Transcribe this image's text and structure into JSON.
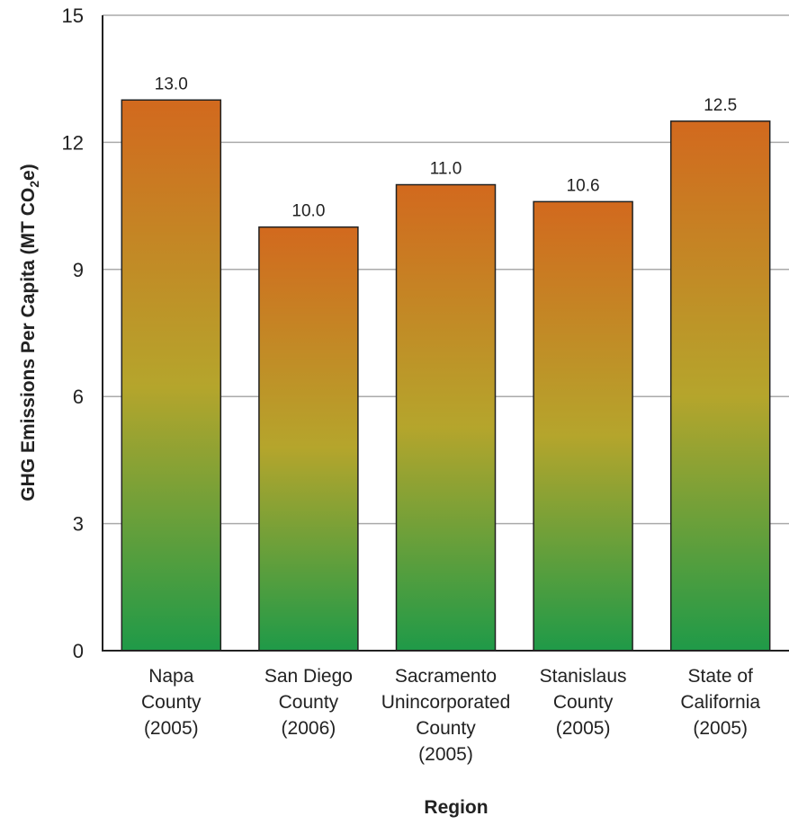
{
  "chart_data": {
    "type": "bar",
    "categories": [
      "Napa County (2005)",
      "San Diego County (2006)",
      "Sacramento Unincorporated County (2005)",
      "Stanislaus County (2005)",
      "State of California (2005)"
    ],
    "category_lines": [
      [
        "Napa",
        "County",
        "(2005)"
      ],
      [
        "San Diego",
        "County",
        "(2006)"
      ],
      [
        "Sacramento",
        "Unincorporated",
        "County",
        "(2005)"
      ],
      [
        "Stanislaus",
        "County",
        "(2005)"
      ],
      [
        "State of",
        "California",
        "(2005)"
      ]
    ],
    "values": [
      13.0,
      10.0,
      11.0,
      10.6,
      12.5
    ],
    "data_labels": [
      "13.0",
      "10.0",
      "11.0",
      "10.6",
      "12.5"
    ],
    "xlabel": "Region",
    "ylabel": "GHG Emissions Per Capita (MT CO",
    "ylabel_subscript": "2",
    "ylabel_suffix": "e)",
    "ylim": [
      0,
      15
    ],
    "yticks": [
      0,
      3,
      6,
      9,
      12,
      15
    ],
    "grid": true,
    "bar_gradient": {
      "top": "#d2691e",
      "middle": "#b5a52c",
      "bottom": "#1f9a48"
    },
    "gridline_color": "#aaaaaa",
    "axis_color": "#222222"
  }
}
